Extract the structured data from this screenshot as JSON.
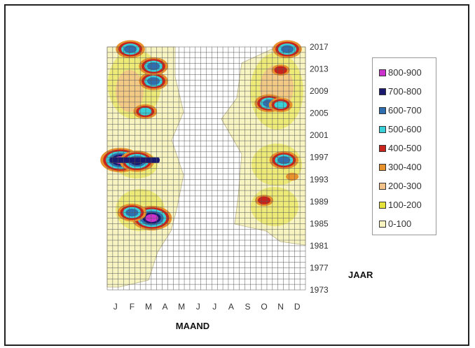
{
  "chart_data": {
    "type": "heatmap",
    "title": "",
    "xlabel": "MAAND",
    "ylabel": "JAAR",
    "x_ticks": [
      "J",
      "F",
      "M",
      "A",
      "M",
      "J",
      "J",
      "A",
      "S",
      "O",
      "N",
      "D"
    ],
    "y_ticks": [
      "2017",
      "2013",
      "2009",
      "2005",
      "2001",
      "1997",
      "1993",
      "1989",
      "1985",
      "1981",
      "1977",
      "1973"
    ],
    "ylim": [
      1973,
      2017
    ],
    "x_range": [
      "J",
      "D"
    ],
    "grid": true,
    "legend": {
      "placement": "right",
      "entries": [
        {
          "label": "800-900",
          "color": "#cc33cc"
        },
        {
          "label": "700-800",
          "color": "#1a1a6e"
        },
        {
          "label": "600-700",
          "color": "#2f6fb0"
        },
        {
          "label": "500-600",
          "color": "#39d0d8"
        },
        {
          "label": "400-500",
          "color": "#c8241c"
        },
        {
          "label": "300-400",
          "color": "#e8922e"
        },
        {
          "label": "200-300",
          "color": "#f2c28a"
        },
        {
          "label": "100-200",
          "color": "#e6e23c"
        },
        {
          "label": "0-100",
          "color": "#f7f4c2"
        }
      ]
    },
    "hotspots": [
      {
        "month": 1.3,
        "year": 1996.5,
        "level": "800-900"
      },
      {
        "month": 2.3,
        "year": 1996.3,
        "level": "700-800"
      },
      {
        "month": 3.2,
        "year": 1986,
        "level": "800-900"
      },
      {
        "month": 3.3,
        "year": 2010.8,
        "level": "600-700"
      },
      {
        "month": 3.3,
        "year": 2013.5,
        "level": "600-700"
      },
      {
        "month": 2.8,
        "year": 2005.3,
        "level": "500-600"
      },
      {
        "month": 1.9,
        "year": 2016.6,
        "level": "600-700"
      },
      {
        "month": 2.0,
        "year": 1987,
        "level": "600-700"
      },
      {
        "month": 10.3,
        "year": 2006.8,
        "level": "600-700"
      },
      {
        "month": 11.0,
        "year": 2006.5,
        "level": "500-600"
      },
      {
        "month": 11.0,
        "year": 2012.8,
        "level": "400-500"
      },
      {
        "month": 11.2,
        "year": 1996.5,
        "level": "600-700"
      },
      {
        "month": 11.4,
        "year": 2016.6,
        "level": "600-700"
      },
      {
        "month": 10.0,
        "year": 1989.2,
        "level": "400-500"
      },
      {
        "month": 11.7,
        "year": 1993.5,
        "level": "300-400"
      }
    ]
  }
}
